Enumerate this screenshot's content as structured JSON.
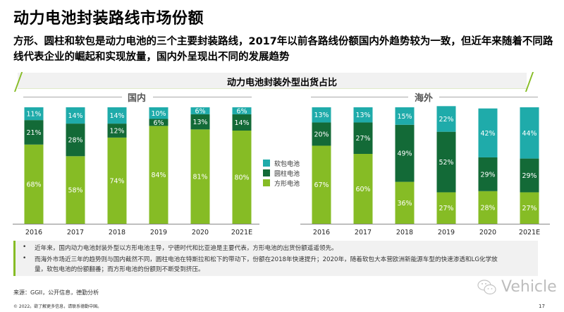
{
  "title": "动力电池封装路线市场份额",
  "subtitle": "方形、圆柱和软包是动力电池的三个主要封装路线，2017年以前各路线份额国内外趋势较为一致，但近年来随着不同路线代表企业的崛起和实现放量，国内外呈现出不同的发展趋势",
  "banner_title": "动力电池封装外型出货占比",
  "colors": {
    "soft_pack": "#1fabaa",
    "cylindrical": "#136a37",
    "prismatic": "#86bc25",
    "accent": "#86bc25"
  },
  "chart_data": [
    {
      "type": "bar",
      "stacked": true,
      "title": "国内",
      "categories": [
        "2016",
        "2017",
        "2018",
        "2019",
        "2020",
        "2021E"
      ],
      "series": [
        {
          "name": "方形电池",
          "values": [
            68,
            58,
            74,
            84,
            81,
            80
          ],
          "labels": [
            "68%",
            "58%",
            "74%",
            "84%",
            "81%",
            "80%"
          ]
        },
        {
          "name": "圆柱电池",
          "values": [
            21,
            28,
            12,
            6,
            13,
            14
          ],
          "labels": [
            "21%",
            "28%",
            "12%",
            "6%",
            "13%",
            "14%"
          ]
        },
        {
          "name": "软包电池",
          "values": [
            11,
            14,
            14,
            10,
            6,
            6
          ],
          "labels": [
            "11%",
            "14%",
            "14%",
            "10%",
            "6%",
            "6%"
          ]
        }
      ],
      "ylim": [
        0,
        100
      ],
      "legend": "right"
    },
    {
      "type": "bar",
      "stacked": true,
      "title": "海外",
      "categories": [
        "2016",
        "2017",
        "2018",
        "2019",
        "2020",
        "2021E"
      ],
      "series": [
        {
          "name": "方形电池",
          "values": [
            67,
            60,
            36,
            27,
            28,
            27
          ],
          "labels": [
            "67%",
            "60%",
            "36%",
            "27%",
            "28%",
            "27%"
          ]
        },
        {
          "name": "圆柱电池",
          "values": [
            20,
            27,
            49,
            52,
            29,
            29
          ],
          "labels": [
            "20%",
            "27%",
            "49%",
            "52%",
            "29%",
            "29%"
          ]
        },
        {
          "name": "软包电池",
          "values": [
            13,
            13,
            15,
            22,
            42,
            44
          ],
          "labels": [
            "13%",
            "13%",
            "15%",
            "22%",
            "42%",
            "44%"
          ]
        }
      ],
      "ylim": [
        0,
        100
      ]
    }
  ],
  "legend": {
    "items": [
      {
        "label": "软包电池",
        "series": "软包电池"
      },
      {
        "label": "圆柱电池",
        "series": "圆柱电池"
      },
      {
        "label": "方形电池",
        "series": "方形电池"
      }
    ]
  },
  "notes": [
    {
      "bullet": "•",
      "text": "近年来，国内动力电池封装外型以方形电池主导，宁德时代和比亚迪是主要代表，方形电池的出货份额遥遥领先。"
    },
    {
      "bullet": "•",
      "text_line1": "而海外市场近三年的趋势则与国内截然不同，圆柱电池在特斯拉和松下的带动下，份额在2018年快速提升；2020年，随着软包大本营欧洲新能源车型的快速渗透和LG化学放",
      "text_line2": "量，软包电池的份额翻番；而方形电池的份额则不断受到挤压。"
    }
  ],
  "source": "来源：GGII，公开信息，德勤分析",
  "copyright": "© 2022。欲了解更多信息，请联系德勤中国。",
  "page_number": "17",
  "watermark": "Vehicle"
}
